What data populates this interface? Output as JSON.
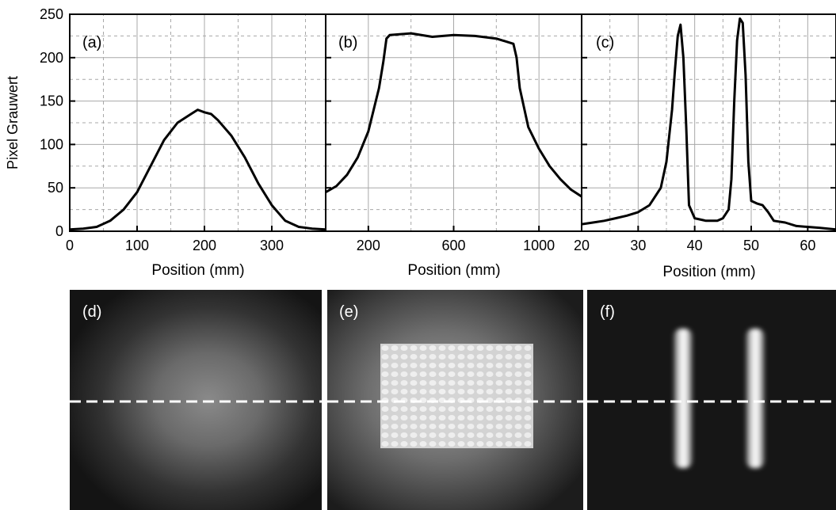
{
  "colors": {
    "line": "#000000",
    "grid": "#a8a8a8",
    "dash_line": "#ffffff",
    "frame": "#000000"
  },
  "shared_ylabel": "Pixel Grauwert",
  "panels": {
    "d": {
      "label": "(d)"
    },
    "e": {
      "label": "(e)"
    },
    "f": {
      "label": "(f)"
    }
  },
  "chart_data": [
    {
      "type": "line",
      "panel_label": "(a)",
      "xlabel": "Position (mm)",
      "ylabel": "Pixel Grauwert",
      "xlim": [
        0,
        380
      ],
      "ylim": [
        0,
        250
      ],
      "xticks": [
        0,
        100,
        200,
        300
      ],
      "yticks": [
        0,
        50,
        100,
        150,
        200,
        250
      ],
      "grid": true,
      "x": [
        0,
        20,
        40,
        60,
        80,
        100,
        120,
        140,
        160,
        180,
        190,
        200,
        210,
        220,
        240,
        260,
        280,
        300,
        320,
        340,
        360,
        380
      ],
      "y": [
        2,
        3,
        5,
        12,
        25,
        45,
        75,
        105,
        125,
        135,
        140,
        137,
        135,
        128,
        110,
        85,
        55,
        30,
        12,
        5,
        3,
        2
      ]
    },
    {
      "type": "line",
      "panel_label": "(b)",
      "xlabel": "Position (mm)",
      "xlim": [
        0,
        1200
      ],
      "ylim": [
        0,
        250
      ],
      "xticks": [
        200,
        600,
        1000
      ],
      "yticks": [
        0,
        50,
        100,
        150,
        200,
        250
      ],
      "grid": true,
      "x": [
        0,
        50,
        100,
        150,
        200,
        250,
        270,
        285,
        300,
        400,
        500,
        600,
        700,
        800,
        880,
        895,
        910,
        950,
        1000,
        1050,
        1100,
        1150,
        1200
      ],
      "y": [
        45,
        52,
        65,
        85,
        115,
        165,
        195,
        222,
        226,
        228,
        224,
        226,
        225,
        222,
        216,
        200,
        165,
        120,
        95,
        75,
        60,
        48,
        40
      ]
    },
    {
      "type": "line",
      "panel_label": "(c)",
      "xlabel": "Position (mm)",
      "xlim": [
        20,
        65
      ],
      "ylim": [
        0,
        250
      ],
      "xticks": [
        20,
        30,
        40,
        50,
        60
      ],
      "yticks": [
        0,
        50,
        100,
        150,
        200,
        250
      ],
      "grid": true,
      "x": [
        20,
        22,
        24,
        26,
        28,
        30,
        32,
        34,
        35,
        36,
        36.5,
        37,
        37.5,
        38,
        38.5,
        39,
        40,
        42,
        44,
        45,
        46,
        46.5,
        47,
        47.5,
        48,
        48.5,
        49,
        49.5,
        50,
        51,
        52,
        53,
        54,
        56,
        58,
        60,
        62,
        65
      ],
      "y": [
        8,
        10,
        12,
        15,
        18,
        22,
        30,
        50,
        80,
        140,
        185,
        225,
        238,
        200,
        120,
        30,
        15,
        12,
        12,
        15,
        25,
        60,
        150,
        220,
        245,
        240,
        180,
        80,
        35,
        32,
        30,
        22,
        12,
        10,
        6,
        5,
        4,
        2
      ]
    }
  ]
}
